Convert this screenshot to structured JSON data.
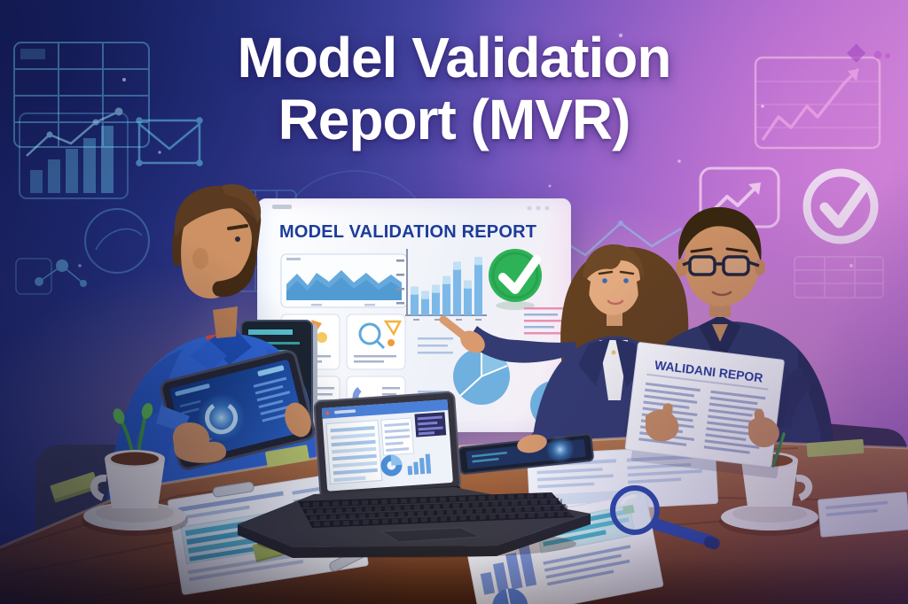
{
  "title": {
    "line1": "Model Validation",
    "line2": "Report (MVR)"
  },
  "whiteboard": {
    "title": "MODEL VALIDATION REPORT",
    "chart": {
      "type": "bar",
      "values": [
        46,
        39,
        49,
        63,
        86,
        56,
        94
      ],
      "ylim": [
        0,
        100
      ],
      "bar_color": "#7cb9e8",
      "bar_top_color": "#c2e0f4"
    },
    "check_color": "#2db257"
  },
  "paper_document": {
    "title": "WALIDANI REPOR"
  },
  "palette": {
    "bg_blue": "#2c3a94",
    "bg_purple": "#7a55c0",
    "bg_pink": "#c47fd4",
    "accent_cyan": "#6fd4f2",
    "accent_pink": "#f2a8e8",
    "check_green": "#2db257",
    "wood_brown": "#9a5f3a",
    "shirt_blue": "#2f66d6",
    "suit_navy": "#2e3768"
  },
  "icons": {
    "background_left": [
      "data-table-icon",
      "rising-bar-chart-icon",
      "envelope-icon",
      "blueprint-circle-icon",
      "molecule-icon",
      "mountain-trend-icon"
    ],
    "background_right": [
      "line-chart-arrow-icon",
      "trend-arrow-icon",
      "check-circle-icon",
      "diamond-icon"
    ],
    "whiteboard": [
      "area-chart",
      "bar-chart",
      "check-badge",
      "pie-chart",
      "donut-chart",
      "magnifier-doodle"
    ]
  }
}
